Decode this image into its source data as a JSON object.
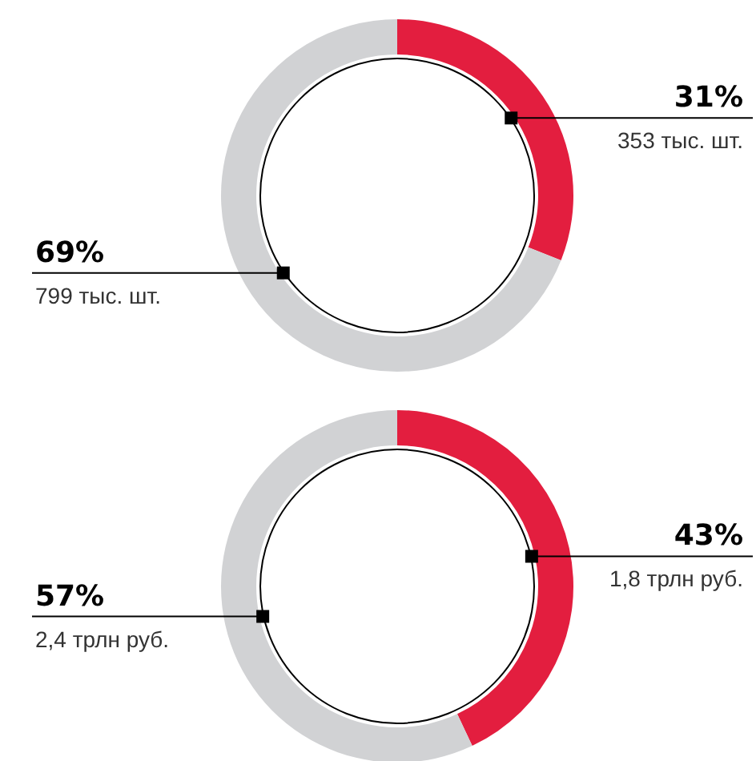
{
  "chart_data": [
    {
      "type": "donut",
      "categories": [
        null,
        null
      ],
      "values": [
        31,
        69
      ],
      "colors": [
        "#e31e3f",
        "#d1d2d4"
      ],
      "value_labels": [
        "31%",
        "69%"
      ],
      "annotations": [
        "353 тыс. шт.",
        "799 тыс. шт."
      ],
      "legend": false
    },
    {
      "type": "donut",
      "categories": [
        null,
        null
      ],
      "values": [
        43,
        57
      ],
      "colors": [
        "#e31e3f",
        "#d1d2d4"
      ],
      "value_labels": [
        "43%",
        "57%"
      ],
      "annotations": [
        "1,8 трлн руб.",
        "2,4 трлн руб."
      ],
      "legend": false
    }
  ]
}
